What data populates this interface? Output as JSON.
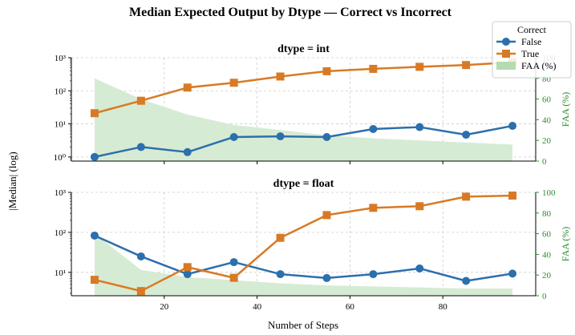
{
  "figure": {
    "title": "Median Expected Output by Dtype — Correct vs Incorrect",
    "xlabel": "Number of Steps",
    "ylabel": "|Median| (log)",
    "ylabel_right": "FAA (%)"
  },
  "legend": {
    "title": "Correct",
    "entries": [
      {
        "label": "False",
        "color": "#2c6fad",
        "marker": "circle"
      },
      {
        "label": "True",
        "color": "#d87a25",
        "marker": "square"
      },
      {
        "label": "FAA (%)",
        "color": "#b5dbb0",
        "marker": "patch"
      }
    ]
  },
  "colors": {
    "false_series": "#2c6fad",
    "true_series": "#d87a25",
    "faa_fill": "#d6ebd3",
    "right_axis": "#2e8b2e",
    "grid": "#cccccc"
  },
  "chart_data": [
    {
      "type": "line",
      "title": "dtype = int",
      "x": [
        5,
        15,
        25,
        35,
        45,
        55,
        65,
        75,
        85,
        95
      ],
      "xlim": [
        0,
        100
      ],
      "x_ticks": [
        20,
        40,
        60,
        80
      ],
      "y_scale": "log",
      "ylim": [
        0.75,
        1000
      ],
      "y_ticks": [
        1,
        10,
        100,
        1000
      ],
      "y_tick_labels": [
        "10⁰",
        "10¹",
        "10²",
        "10³"
      ],
      "series": [
        {
          "name": "False",
          "values": [
            1.0,
            2.0,
            1.4,
            4.0,
            4.2,
            4.0,
            7.0,
            8.0,
            4.7,
            8.7
          ]
        },
        {
          "name": "True",
          "values": [
            21,
            50,
            125,
            175,
            270,
            390,
            460,
            530,
            600,
            730
          ]
        }
      ],
      "area": {
        "name": "FAA (%)",
        "values": [
          80,
          60,
          45,
          35,
          30,
          25,
          22,
          20,
          18,
          16
        ],
        "ylim": [
          0,
          100
        ]
      },
      "right_ticks": [
        0,
        20,
        40,
        60,
        80,
        100
      ],
      "right_tick_labels": [
        "0",
        "20",
        "40",
        "60",
        "80",
        "100"
      ],
      "grid": true
    },
    {
      "type": "line",
      "title": "dtype = float",
      "x": [
        5,
        15,
        25,
        35,
        45,
        55,
        65,
        75,
        85,
        95
      ],
      "xlim": [
        0,
        100
      ],
      "x_ticks": [
        20,
        40,
        60,
        80
      ],
      "x_tick_labels": [
        "20",
        "40",
        "60",
        "80"
      ],
      "y_scale": "log",
      "ylim": [
        2.6,
        1000
      ],
      "y_ticks": [
        10,
        100,
        1000
      ],
      "y_tick_labels": [
        "10¹",
        "10²",
        "10³"
      ],
      "series": [
        {
          "name": "False",
          "values": [
            83,
            25,
            9.0,
            18,
            9.0,
            7.2,
            9.0,
            12.5,
            6.1,
            9.3
          ]
        },
        {
          "name": "True",
          "values": [
            6.5,
            3.4,
            13.5,
            7.3,
            73,
            270,
            410,
            450,
            780,
            830
          ]
        }
      ],
      "area": {
        "name": "FAA (%)",
        "values": [
          60,
          25,
          18,
          15,
          12,
          10,
          9,
          8,
          7,
          7
        ],
        "ylim": [
          0,
          100
        ]
      },
      "right_ticks": [
        0,
        20,
        40,
        60,
        80,
        100
      ],
      "right_tick_labels": [
        "0",
        "20",
        "40",
        "60",
        "80",
        "100"
      ],
      "grid": true
    }
  ]
}
